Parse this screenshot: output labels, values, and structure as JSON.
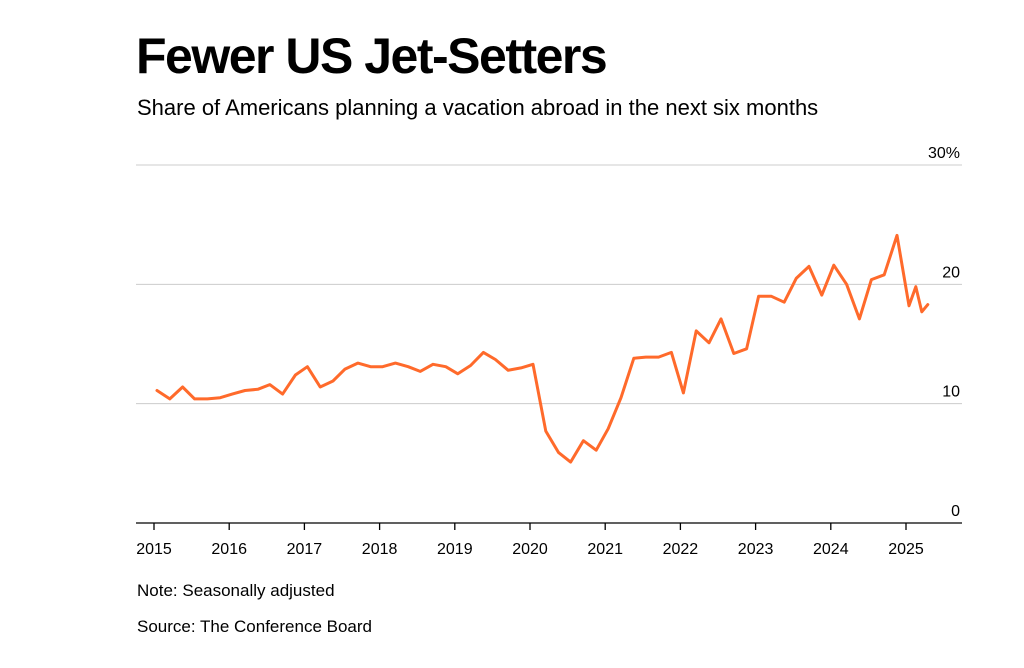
{
  "header": {
    "title": "Fewer US Jet-Setters",
    "subtitle": "Share of Americans planning a vacation abroad in the next six months"
  },
  "footer": {
    "note": "Note: Seasonally adjusted",
    "source": "Source: The Conference Board"
  },
  "colors": {
    "line": "#ff6a2b",
    "grid": "#cccccc",
    "axis": "#000000",
    "text": "#000000"
  },
  "chart_data": {
    "type": "line",
    "title": "Fewer US Jet-Setters",
    "subtitle": "Share of Americans planning a vacation abroad in the next six months",
    "xlabel": "",
    "ylabel": "",
    "xlim": [
      2014.85,
      2025.75
    ],
    "ylim": [
      0,
      30
    ],
    "grid": true,
    "y_axis_side": "right",
    "x_ticks": [
      "2015",
      "2016",
      "2017",
      "2018",
      "2019",
      "2020",
      "2021",
      "2022",
      "2023",
      "2024",
      "2025"
    ],
    "y_ticks": [
      "0",
      "10",
      "20",
      "30%"
    ],
    "y_tick_values": [
      0,
      10,
      20,
      30
    ],
    "series": [
      {
        "x": [
          2015.04,
          2015.21,
          2015.38,
          2015.54,
          2015.71,
          2015.88,
          2016.04,
          2016.21,
          2016.38,
          2016.54,
          2016.71,
          2016.88,
          2017.04,
          2017.21,
          2017.38,
          2017.54,
          2017.71,
          2017.88,
          2018.04,
          2018.21,
          2018.38,
          2018.54,
          2018.71,
          2018.88,
          2019.04,
          2019.21,
          2019.38,
          2019.54,
          2019.71,
          2019.88,
          2020.04,
          2020.21,
          2020.38,
          2020.54,
          2020.71,
          2020.88,
          2021.04,
          2021.21,
          2021.38,
          2021.54,
          2021.71,
          2021.88,
          2022.04,
          2022.21,
          2022.38,
          2022.54,
          2022.71,
          2022.88,
          2023.04,
          2023.21,
          2023.38,
          2023.54,
          2023.71,
          2023.88,
          2024.04,
          2024.21,
          2024.38,
          2024.54,
          2024.71,
          2024.88,
          2025.04,
          2025.13,
          2025.21,
          2025.29
        ],
        "y": [
          11.1,
          10.4,
          11.4,
          10.4,
          10.4,
          10.5,
          10.8,
          11.1,
          11.2,
          11.6,
          10.8,
          12.4,
          13.1,
          11.4,
          11.9,
          12.9,
          13.4,
          13.1,
          13.1,
          13.4,
          13.1,
          12.7,
          13.3,
          13.1,
          12.5,
          13.2,
          14.3,
          13.7,
          12.8,
          13.0,
          13.3,
          7.7,
          5.9,
          5.1,
          6.9,
          6.1,
          7.9,
          10.5,
          13.8,
          13.9,
          13.9,
          14.3,
          10.9,
          16.1,
          15.1,
          17.1,
          14.2,
          14.6,
          19.0,
          19.0,
          18.5,
          20.5,
          21.5,
          19.1,
          21.6,
          20.0,
          17.1,
          20.4,
          20.8,
          24.1,
          18.2,
          19.8,
          17.7,
          18.3
        ]
      }
    ]
  }
}
